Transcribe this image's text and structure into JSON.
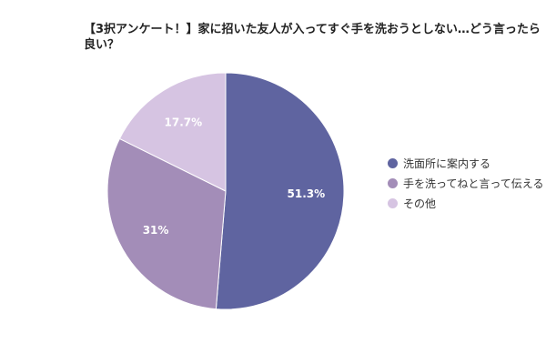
{
  "chart_data": {
    "type": "pie",
    "title": "【3択アンケート！】家に招いた友人が入ってすぐ手を洗おうとしない…どう言ったら良い？",
    "categories": [
      "洗面所に案内する",
      "手を洗ってねと言って伝える",
      "その他"
    ],
    "values": [
      51.3,
      31,
      17.7
    ],
    "value_labels": [
      "51.3%",
      "31%",
      "17.7%"
    ],
    "colors": [
      "#5f64a0",
      "#a38db8",
      "#d6c4e2"
    ],
    "legend": "right"
  }
}
